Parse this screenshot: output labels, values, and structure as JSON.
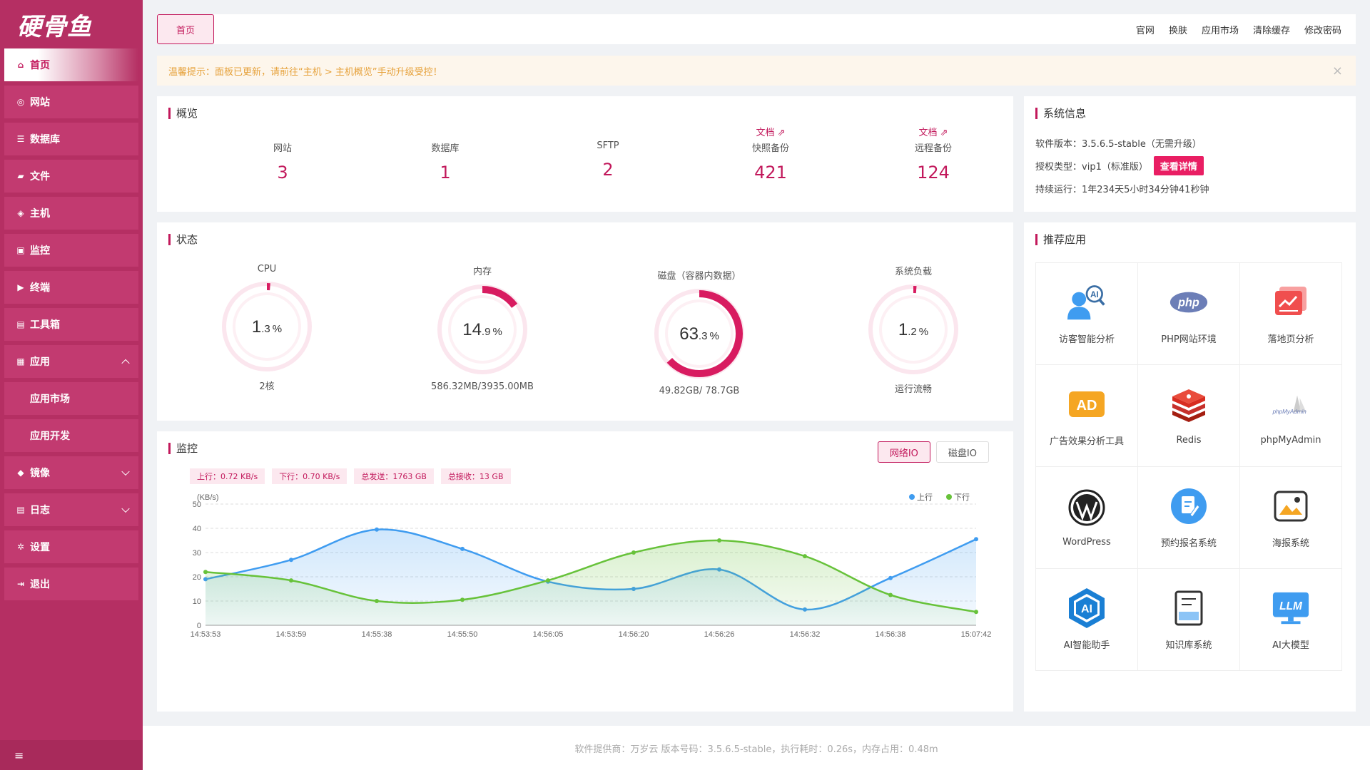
{
  "app": {
    "logo": "硬骨鱼"
  },
  "sidebar": {
    "items": [
      {
        "label": "首页"
      },
      {
        "label": "网站"
      },
      {
        "label": "数据库"
      },
      {
        "label": "文件"
      },
      {
        "label": "主机"
      },
      {
        "label": "监控"
      },
      {
        "label": "终端"
      },
      {
        "label": "工具箱"
      },
      {
        "label": "应用"
      },
      {
        "label": "应用市场"
      },
      {
        "label": "应用开发"
      },
      {
        "label": "镜像"
      },
      {
        "label": "日志"
      },
      {
        "label": "设置"
      },
      {
        "label": "退出"
      }
    ],
    "toggle_icon": "≡"
  },
  "topbar": {
    "tab": "首页",
    "links": [
      "官网",
      "换肤",
      "应用市场",
      "清除缓存",
      "修改密码"
    ]
  },
  "notice": {
    "text": "温馨提示：面板已更新，请前往“主机 > 主机概览”手动升级受控！",
    "close": "×"
  },
  "overview": {
    "title": "概览",
    "doc_label": "文档",
    "items": [
      {
        "label": "网站",
        "value": "3"
      },
      {
        "label": "数据库",
        "value": "1"
      },
      {
        "label": "SFTP",
        "value": "2"
      },
      {
        "label": "快照备份",
        "value": "421"
      },
      {
        "label": "远程备份",
        "value": "124"
      }
    ]
  },
  "status": {
    "title": "状态",
    "gauges": [
      {
        "label": "CPU",
        "int": "1",
        "dec": ".3",
        "unit": "%",
        "percent": 1.3,
        "sub": "2核"
      },
      {
        "label": "内存",
        "int": "14",
        "dec": ".9",
        "unit": "%",
        "percent": 14.9,
        "sub": "586.32MB/3935.00MB"
      },
      {
        "label": "磁盘（容器内数据）",
        "int": "63",
        "dec": ".3",
        "unit": "%",
        "percent": 63.3,
        "sub": "49.82GB/ 78.7GB"
      },
      {
        "label": "系统负载",
        "int": "1",
        "dec": ".2",
        "unit": "%",
        "percent": 1.2,
        "sub": "运行流畅"
      }
    ]
  },
  "monitor": {
    "title": "监控",
    "tabs": [
      "网络IO",
      "磁盘IO"
    ],
    "badges": [
      "上行：0.72 KB/s",
      "下行：0.70 KB/s",
      "总发送：1763 GB",
      "总接收：13 GB"
    ]
  },
  "chart_data": {
    "type": "area",
    "ylabel": "(KB/s)",
    "ylim": [
      0,
      50
    ],
    "yticks": [
      0,
      10,
      20,
      30,
      40,
      50
    ],
    "categories": [
      "14:53:53",
      "14:53:59",
      "14:55:38",
      "14:55:50",
      "14:56:05",
      "14:56:20",
      "14:56:26",
      "14:56:32",
      "14:56:38",
      "15:07:42"
    ],
    "grid": true,
    "legend": "top-right",
    "series": [
      {
        "name": "上行",
        "color": "#3f9cf0",
        "values": [
          19,
          27,
          39.5,
          31.5,
          18,
          15,
          23,
          6.5,
          19.5,
          35.5
        ]
      },
      {
        "name": "下行",
        "color": "#67c23a",
        "values": [
          22,
          18.5,
          10,
          10.5,
          18.5,
          30,
          35,
          28.5,
          12.5,
          5.5
        ]
      }
    ]
  },
  "sysinfo": {
    "title": "系统信息",
    "version_label": "软件版本：",
    "version": "3.5.6.5-stable（无需升级）",
    "license_label": "授权类型：",
    "license": "vip1（标准版）",
    "detail_button": "查看详情",
    "uptime_label": "持续运行：",
    "uptime": "1年234天5小时34分钟41秒钟"
  },
  "recommend": {
    "title": "推荐应用",
    "apps": [
      {
        "label": "访客智能分析",
        "icon": "visitor-ai-icon"
      },
      {
        "label": "PHP网站环境",
        "icon": "php-icon"
      },
      {
        "label": "落地页分析",
        "icon": "landing-page-icon"
      },
      {
        "label": "广告效果分析工具",
        "icon": "ad-icon"
      },
      {
        "label": "Redis",
        "icon": "redis-icon"
      },
      {
        "label": "phpMyAdmin",
        "icon": "phpmyadmin-icon"
      },
      {
        "label": "WordPress",
        "icon": "wordpress-icon"
      },
      {
        "label": "预约报名系统",
        "icon": "booking-icon"
      },
      {
        "label": "海报系统",
        "icon": "poster-icon"
      },
      {
        "label": "AI智能助手",
        "icon": "ai-assistant-icon"
      },
      {
        "label": "知识库系统",
        "icon": "knowledge-base-icon"
      },
      {
        "label": "AI大模型",
        "icon": "llm-icon"
      }
    ],
    "icon_text": {
      "ai": "AI",
      "php": "php",
      "ad": "AD",
      "pma": "phpMyAdmin",
      "llm": "LLM"
    }
  },
  "footer": {
    "text": "软件提供商：万岁云   版本号码：3.5.6.5-stable，执行耗时：0.26s，内存占用：0.48m"
  }
}
